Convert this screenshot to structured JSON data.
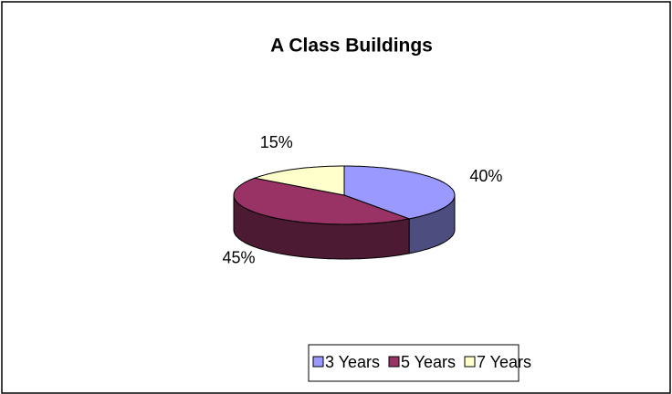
{
  "chart_data": {
    "type": "pie3d",
    "title": "A Class Buildings",
    "categories": [
      "3 Years",
      "5 Years",
      "7 Years"
    ],
    "values": [
      40,
      45,
      15
    ],
    "value_labels": [
      "40%",
      "45%",
      "15%"
    ],
    "colors": [
      "#9999ff",
      "#993366",
      "#ffffcc"
    ],
    "legend": "bottom"
  }
}
